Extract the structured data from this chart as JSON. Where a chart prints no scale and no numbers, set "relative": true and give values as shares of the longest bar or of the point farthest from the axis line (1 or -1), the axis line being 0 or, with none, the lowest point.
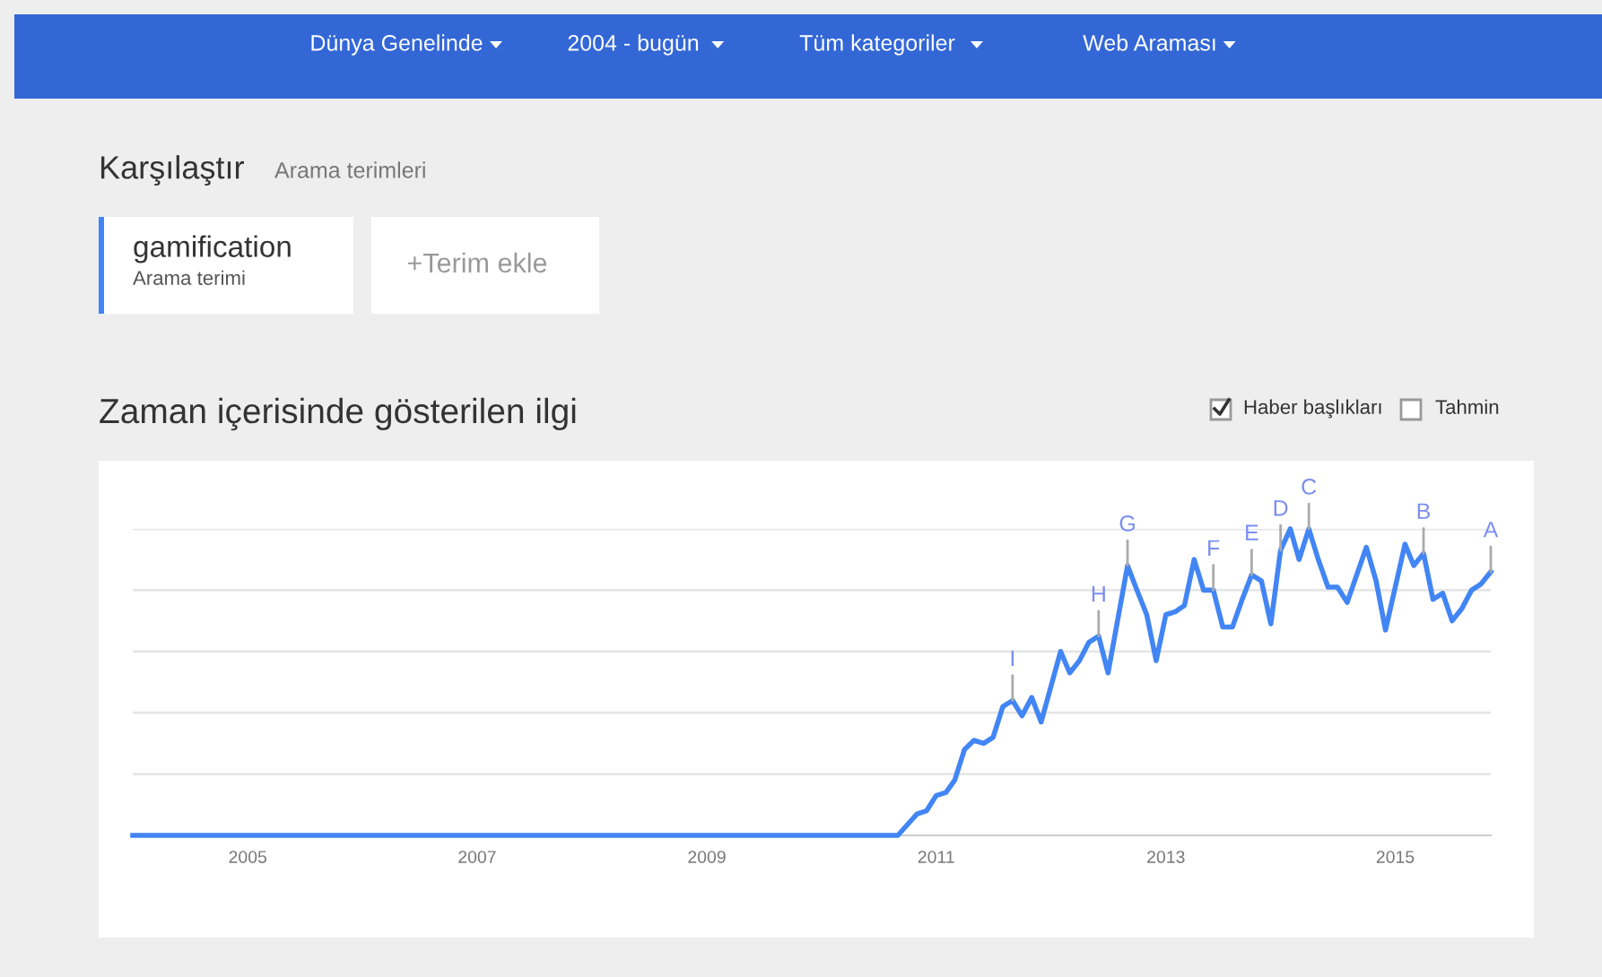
{
  "chart_data": {
    "type": "line",
    "title": "Zaman içerisinde gösterilen ilgi",
    "relative": true,
    "grid": "y",
    "legend": false,
    "marker": "none",
    "line_style": "solid",
    "x": [
      "2004-01",
      "2010-09",
      "2010-11",
      "2010-12",
      "2011-01",
      "2011-02",
      "2011-03",
      "2011-04",
      "2011-05",
      "2011-06",
      "2011-07",
      "2011-08",
      "2011-09",
      "2011-10",
      "2011-11",
      "2011-12",
      "2012-02",
      "2012-03",
      "2012-04",
      "2012-05",
      "2012-06",
      "2012-07",
      "2012-09",
      "2012-10",
      "2012-11",
      "2012-12",
      "2013-01",
      "2013-02",
      "2013-03",
      "2013-04",
      "2013-05",
      "2013-06",
      "2013-07",
      "2013-08",
      "2013-09",
      "2013-10",
      "2013-11",
      "2013-12",
      "2014-01",
      "2014-02",
      "2014-03",
      "2014-04",
      "2014-05",
      "2014-06",
      "2014-07",
      "2014-08",
      "2014-10",
      "2014-11",
      "2014-12",
      "2015-02",
      "2015-03",
      "2015-04",
      "2015-05",
      "2015-06",
      "2015-07",
      "2015-08",
      "2015-09",
      "2015-10",
      "2015-11"
    ],
    "series": [
      {
        "name": "gamification",
        "color": "#4285f4",
        "values": [
          0,
          0,
          0.07,
          0.08,
          0.13,
          0.14,
          0.18,
          0.28,
          0.31,
          0.3,
          0.32,
          0.42,
          0.44,
          0.39,
          0.45,
          0.37,
          0.6,
          0.53,
          0.57,
          0.63,
          0.65,
          0.53,
          0.88,
          0.8,
          0.72,
          0.57,
          0.72,
          0.73,
          0.75,
          0.9,
          0.8,
          0.8,
          0.68,
          0.68,
          0.77,
          0.85,
          0.83,
          0.69,
          0.93,
          1.0,
          0.9,
          1.0,
          0.9,
          0.81,
          0.81,
          0.76,
          0.94,
          0.83,
          0.67,
          0.95,
          0.88,
          0.92,
          0.77,
          0.79,
          0.7,
          0.74,
          0.8,
          0.82,
          0.86
        ]
      }
    ],
    "xlim": [
      "2004-01",
      "2015-11"
    ],
    "xticks": [
      {
        "value": "2005",
        "label": "2005"
      },
      {
        "value": "2007",
        "label": "2007"
      },
      {
        "value": "2009",
        "label": "2009"
      },
      {
        "value": "2011",
        "label": "2011"
      },
      {
        "value": "2013",
        "label": "2013"
      },
      {
        "value": "2015",
        "label": "2015"
      }
    ],
    "annotations": [
      "Dünya Genelinde",
      "2004 - bugün",
      "Tüm kategoriler",
      "Web Araması",
      "Karşılaştır",
      "Arama terimleri",
      "Arama terimi",
      "+Terim ekle",
      "Haber başlıkları",
      "Tahmin",
      {
        "text": "I",
        "x": "2011-09",
        "y": 0.44
      },
      {
        "text": "H",
        "x": "2012-06",
        "y": 0.65
      },
      {
        "text": "G",
        "x": "2012-09",
        "y": 0.88
      },
      {
        "text": "F",
        "x": "2013-06",
        "y": 0.8
      },
      {
        "text": "E",
        "x": "2013-10",
        "y": 0.85
      },
      {
        "text": "D",
        "x": "2014-01",
        "y": 0.93
      },
      {
        "text": "C",
        "x": "2014-04",
        "y": 1.0
      },
      {
        "text": "B",
        "x": "2015-04",
        "y": 0.92
      },
      {
        "text": "A",
        "x": "2015-11",
        "y": 0.86
      }
    ]
  }
}
